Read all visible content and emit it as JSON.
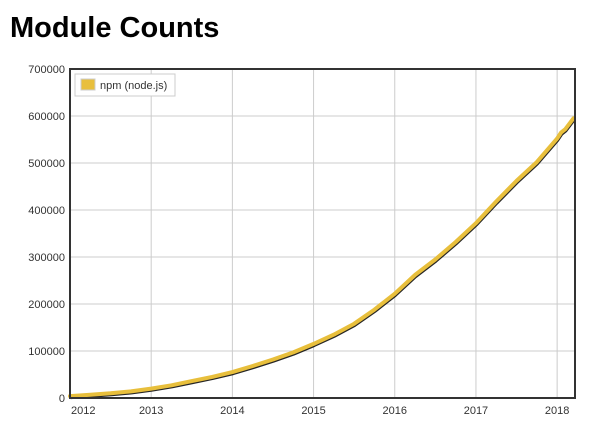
{
  "page": {
    "title": "Module Counts"
  },
  "chart_data": {
    "type": "line",
    "title": "Module Counts",
    "xlabel": "",
    "ylabel": "",
    "xlim": [
      2012.0,
      2018.22
    ],
    "ylim": [
      0,
      700000
    ],
    "x_ticks": [
      2012,
      2013,
      2014,
      2015,
      2016,
      2017,
      2018
    ],
    "y_ticks": [
      0,
      100000,
      200000,
      300000,
      400000,
      500000,
      600000,
      700000
    ],
    "grid": true,
    "legend": {
      "position": "top-left"
    },
    "colors": {
      "series": "#e8bf3c",
      "shadow": "#000000",
      "axis": "#333333",
      "grid": "#cccccc"
    },
    "series": [
      {
        "name": "npm (node.js)",
        "x": [
          2012.0,
          2012.25,
          2012.5,
          2012.75,
          2013.0,
          2013.25,
          2013.5,
          2013.75,
          2014.0,
          2014.25,
          2014.5,
          2014.75,
          2015.0,
          2015.25,
          2015.5,
          2015.75,
          2016.0,
          2016.25,
          2016.5,
          2016.75,
          2017.0,
          2017.25,
          2017.5,
          2017.75,
          2018.0,
          2018.05,
          2018.1,
          2018.2
        ],
        "y": [
          4000,
          7000,
          10000,
          14000,
          20000,
          27000,
          36000,
          45000,
          55000,
          68000,
          82000,
          97000,
          115000,
          135000,
          158000,
          188000,
          222000,
          262000,
          295000,
          332000,
          372000,
          418000,
          462000,
          502000,
          552000,
          565000,
          572000,
          595000
        ]
      }
    ]
  }
}
